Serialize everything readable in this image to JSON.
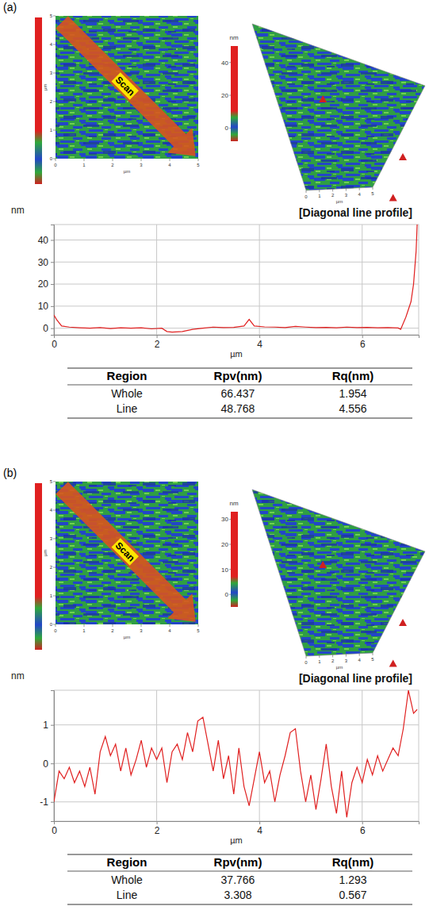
{
  "chart_data": [
    {
      "type": "line",
      "panel_label": "(a)",
      "title": "[Diagonal line profile]",
      "x_label": "µm",
      "y_label": "nm",
      "annotation": "Scan",
      "image": {
        "axis_label": "µm",
        "ticks": [
          0,
          1,
          2,
          3,
          4,
          5
        ]
      },
      "colorbar": {
        "label": "nm",
        "range": [
          -8,
          50
        ],
        "ticks": [
          0,
          20,
          40
        ]
      },
      "x": [
        0,
        0.05,
        0.15,
        0.3,
        0.5,
        0.7,
        0.9,
        1.1,
        1.3,
        1.5,
        1.7,
        1.9,
        2.1,
        2.2,
        2.3,
        2.5,
        2.7,
        2.9,
        3.1,
        3.3,
        3.5,
        3.7,
        3.8,
        3.9,
        4.1,
        4.3,
        4.5,
        4.7,
        4.9,
        5.1,
        5.3,
        5.5,
        5.7,
        5.9,
        6.1,
        6.3,
        6.5,
        6.7,
        6.75,
        6.85,
        6.95,
        7.0,
        7.05,
        7.07
      ],
      "values": [
        6,
        4,
        1,
        0.5,
        0.2,
        0,
        0.3,
        -0.2,
        0.2,
        0,
        0.2,
        -0.3,
        0,
        -1.5,
        -1.8,
        -1.5,
        -0.5,
        0,
        0.5,
        0.3,
        0.4,
        1,
        4,
        1,
        0.6,
        0.5,
        0.3,
        0.8,
        0.5,
        0.3,
        0.4,
        0.2,
        0.5,
        0.3,
        0.4,
        0.2,
        0.3,
        0.1,
        -0.5,
        5,
        12,
        20,
        35,
        47
      ],
      "color": "#e02020",
      "xlim": [
        0,
        7.1
      ],
      "xticks": [
        0,
        2,
        4,
        6
      ],
      "ylim": [
        -3,
        47
      ],
      "yticks": [
        0,
        10,
        20,
        30,
        40
      ],
      "grid": true,
      "table": {
        "columns": [
          "Region",
          "Rpv(nm)",
          "Rq(nm)"
        ],
        "rows": [
          [
            "Whole",
            66.437,
            1.954
          ],
          [
            "Line",
            48.768,
            4.556
          ]
        ]
      }
    },
    {
      "type": "line",
      "panel_label": "(b)",
      "title": "[Diagonal line profile]",
      "x_label": "µm",
      "y_label": "nm",
      "annotation": "Scan",
      "image": {
        "axis_label": "µm",
        "ticks": [
          0,
          1,
          2,
          3,
          4,
          5
        ]
      },
      "colorbar": {
        "label": "nm",
        "range": [
          -5,
          33
        ],
        "ticks": [
          0,
          10,
          20,
          30
        ]
      },
      "x": [
        0,
        0.1,
        0.2,
        0.3,
        0.4,
        0.5,
        0.6,
        0.7,
        0.8,
        0.9,
        1.0,
        1.1,
        1.2,
        1.3,
        1.4,
        1.5,
        1.6,
        1.7,
        1.8,
        1.9,
        2.0,
        2.1,
        2.2,
        2.3,
        2.4,
        2.5,
        2.6,
        2.7,
        2.8,
        2.9,
        3.0,
        3.1,
        3.2,
        3.3,
        3.4,
        3.5,
        3.6,
        3.7,
        3.8,
        3.9,
        4.0,
        4.1,
        4.2,
        4.3,
        4.4,
        4.5,
        4.6,
        4.7,
        4.8,
        4.9,
        5.0,
        5.1,
        5.2,
        5.3,
        5.4,
        5.5,
        5.6,
        5.7,
        5.8,
        5.9,
        6.0,
        6.1,
        6.2,
        6.3,
        6.4,
        6.5,
        6.6,
        6.7,
        6.8,
        6.9,
        7.0,
        7.07
      ],
      "values": [
        -1.0,
        -0.2,
        -0.4,
        -0.1,
        -0.5,
        -0.2,
        -0.6,
        -0.1,
        -0.8,
        0.3,
        0.7,
        0.2,
        0.5,
        -0.2,
        0.4,
        -0.3,
        0.1,
        0.6,
        -0.1,
        0.4,
        0.1,
        0.4,
        -0.5,
        0.3,
        0.5,
        0.1,
        0.8,
        0.3,
        1.1,
        1.2,
        0.5,
        -0.2,
        0.6,
        -0.4,
        0.2,
        -0.8,
        0.4,
        -0.6,
        -1.1,
        -0.4,
        0.3,
        -0.5,
        -0.2,
        -1.0,
        -0.3,
        0.2,
        0.8,
        0.9,
        -0.2,
        -1.0,
        -0.3,
        -1.2,
        -0.4,
        0.5,
        -0.6,
        -1.3,
        -0.2,
        -1.4,
        -0.5,
        -0.1,
        -0.5,
        0.1,
        -0.3,
        0.2,
        -0.2,
        0.1,
        0.4,
        0.2,
        0.9,
        1.9,
        1.3,
        1.4
      ],
      "color": "#e02020",
      "xlim": [
        0,
        7.1
      ],
      "xticks": [
        0,
        2,
        4,
        6
      ],
      "ylim": [
        -1.5,
        1.9
      ],
      "yticks": [
        -1,
        0,
        1
      ],
      "grid": true,
      "table": {
        "columns": [
          "Region",
          "Rpv(nm)",
          "Rq(nm)"
        ],
        "rows": [
          [
            "Whole",
            37.766,
            1.293
          ],
          [
            "Line",
            3.308,
            0.567
          ]
        ]
      }
    }
  ]
}
